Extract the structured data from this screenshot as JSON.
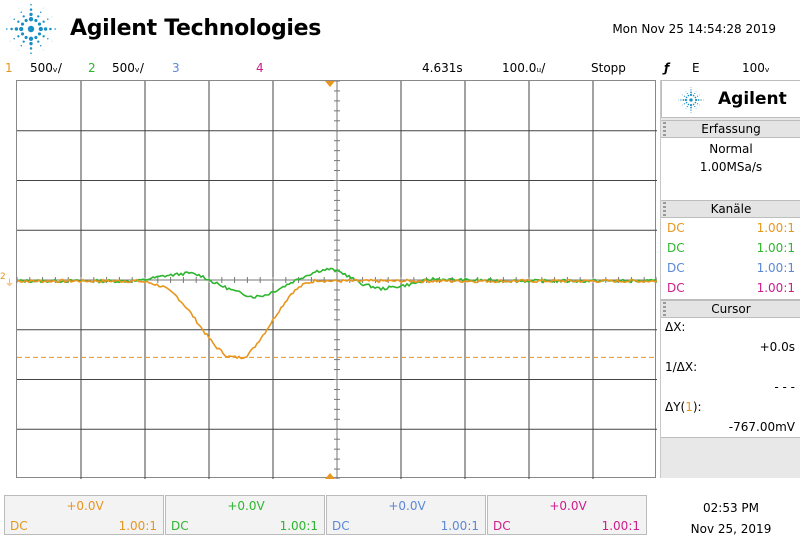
{
  "header": {
    "brand": "Agilent Technologies",
    "datetime": "Mon Nov 25 14:54:28 2019",
    "logo_icon": "agilent-spark-icon"
  },
  "status": {
    "ch1_num": "1",
    "ch1_scale": "500ᵥ/",
    "ch2_num": "2",
    "ch2_scale": "500ᵥ/",
    "ch3_num": "3",
    "ch4_num": "4",
    "time_pos": "4.631s",
    "time_scale": "100.0ᵤ/",
    "run_state": "Stopp",
    "trigger_icon": "trigger-edge-falling-icon",
    "trigger_glyph": "ƒ",
    "trigger_source": "E",
    "trigger_level": "100ᵥ"
  },
  "colors": {
    "ch1": "#e8961e",
    "ch2": "#2fb52f",
    "ch3": "#5b87d6",
    "ch4": "#cc1d8c"
  },
  "panel": {
    "brand": "Agilent",
    "acq_title": "Erfassung",
    "acq_mode": "Normal",
    "acq_rate": "1.00MSa/s",
    "ch_title": "Kanäle",
    "channels": [
      {
        "coupling": "DC",
        "probe": "1.00:1"
      },
      {
        "coupling": "DC",
        "probe": "1.00:1"
      },
      {
        "coupling": "DC",
        "probe": "1.00:1"
      },
      {
        "coupling": "DC",
        "probe": "1.00:1"
      }
    ],
    "cursor_title": "Cursor",
    "dx_label": "ΔX:",
    "dx_value": "+0.0s",
    "inv_dx_label": "1/ΔX:",
    "inv_dx_value": "- - -",
    "dy_label_prefix": "ΔY(",
    "dy_label_ch": "1",
    "dy_label_suffix": "):",
    "dy_value": "-767.00mV"
  },
  "bottom": {
    "channels": [
      {
        "offset": "+0.0V",
        "coupling": "DC",
        "probe": "1.00:1"
      },
      {
        "offset": "+0.0V",
        "coupling": "DC",
        "probe": "1.00:1"
      },
      {
        "offset": "+0.0V",
        "coupling": "DC",
        "probe": "1.00:1"
      },
      {
        "offset": "+0.0V",
        "coupling": "DC",
        "probe": "1.00:1"
      }
    ],
    "time": "02:53 PM",
    "date": "Nov 25, 2019"
  },
  "chart_data": {
    "type": "line",
    "grid": "10x8 divisions",
    "volts_per_div": 0.5,
    "time_per_div_ms": 100,
    "series": [
      {
        "channel": "1",
        "color": "#e8961e",
        "x_ms": [
          -500,
          -400,
          -350,
          -300,
          -280,
          -260,
          -240,
          -220,
          -200,
          -180,
          -160,
          -140,
          -130,
          -120,
          -100,
          -80,
          -60,
          -40,
          -20,
          0,
          100,
          200,
          300,
          400,
          500
        ],
        "y_v": [
          0,
          0,
          0,
          0,
          -0.02,
          -0.06,
          -0.15,
          -0.3,
          -0.48,
          -0.65,
          -0.76,
          -0.77,
          -0.75,
          -0.68,
          -0.5,
          -0.3,
          -0.12,
          -0.03,
          0.01,
          0,
          0,
          0,
          0,
          0,
          0
        ]
      },
      {
        "channel": "2",
        "color": "#2fb52f",
        "x_ms": [
          -500,
          -400,
          -300,
          -260,
          -220,
          -200,
          -180,
          -150,
          -120,
          -100,
          -80,
          -50,
          -20,
          0,
          20,
          50,
          80,
          120,
          160,
          200,
          300,
          400,
          500
        ],
        "y_v": [
          0,
          0,
          0,
          0.05,
          0.08,
          0.05,
          -0.02,
          -0.1,
          -0.16,
          -0.14,
          -0.08,
          0.02,
          0.1,
          0.12,
          0.08,
          -0.03,
          -0.08,
          -0.04,
          0.02,
          0.01,
          0,
          0,
          0
        ]
      }
    ],
    "cursor_y_v": -0.767
  }
}
